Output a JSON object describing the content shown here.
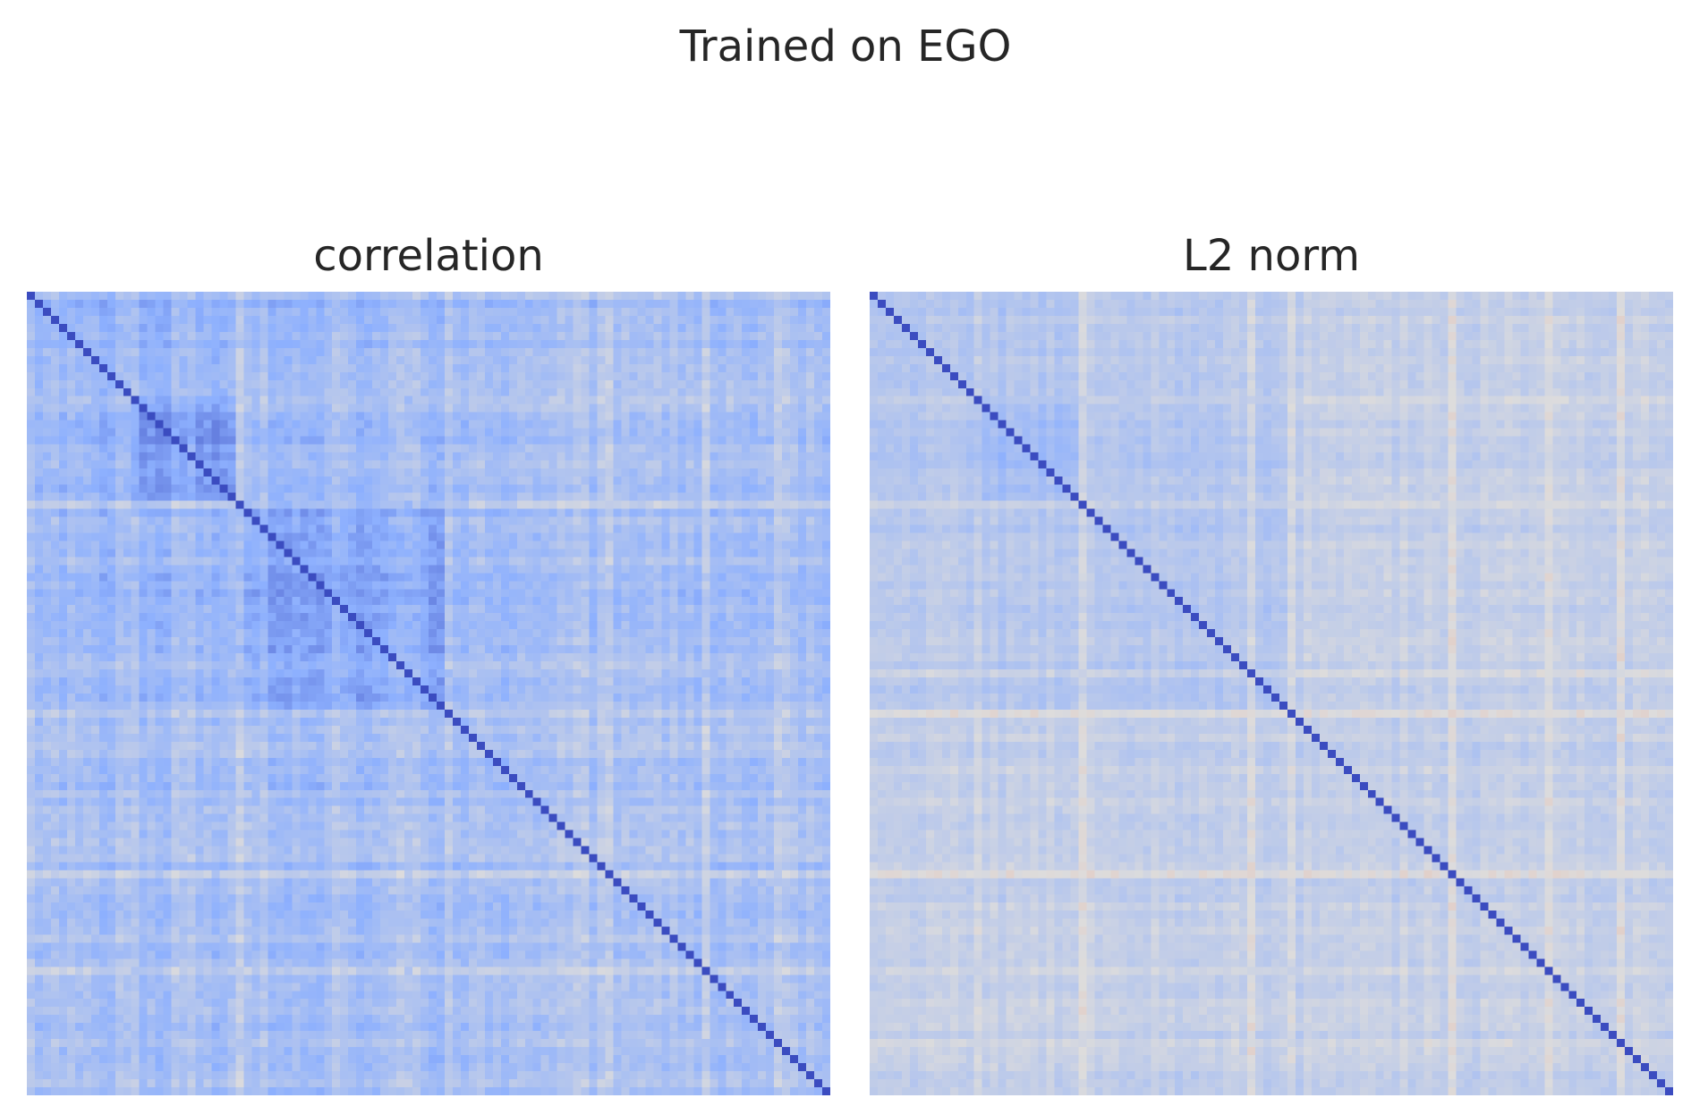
{
  "figure": {
    "title": "Trained on EGO"
  },
  "chart_data": [
    {
      "type": "heatmap",
      "title": "correlation",
      "xlabel": "",
      "ylabel": "",
      "size": 100,
      "colormap": "coolwarm",
      "color_range": [
        -1,
        1
      ],
      "diagonal_value": 1.0,
      "background_value": 0.3,
      "blocks": [
        {
          "rows": [
            13,
            26
          ],
          "cols": [
            13,
            26
          ],
          "value": 0.58
        },
        {
          "rows": [
            26,
            52
          ],
          "cols": [
            26,
            52
          ],
          "value": 0.5
        },
        {
          "rows": [
            0,
            26
          ],
          "cols": [
            0,
            26
          ],
          "value": 0.42
        },
        {
          "rows": [
            0,
            52
          ],
          "cols": [
            0,
            52
          ],
          "value": 0.38
        },
        {
          "rows": [
            52,
            100
          ],
          "cols": [
            0,
            52
          ],
          "value": 0.33
        },
        {
          "rows": [
            0,
            52
          ],
          "cols": [
            52,
            100
          ],
          "value": 0.33
        }
      ],
      "light_lines": [
        13,
        26,
        47,
        52,
        72,
        84,
        93
      ],
      "noise_amplitude": 0.16,
      "seed": 7,
      "grid": false,
      "legend": "none"
    },
    {
      "type": "heatmap",
      "title": "L2 norm",
      "xlabel": "",
      "ylabel": "",
      "size": 100,
      "colormap": "coolwarm",
      "color_range": [
        -1,
        1
      ],
      "diagonal_value": 1.0,
      "background_value": 0.16,
      "blocks": [
        {
          "rows": [
            13,
            26
          ],
          "cols": [
            13,
            26
          ],
          "value": 0.36
        },
        {
          "rows": [
            13,
            52
          ],
          "cols": [
            13,
            52
          ],
          "value": 0.25
        },
        {
          "rows": [
            0,
            26
          ],
          "cols": [
            0,
            26
          ],
          "value": 0.26
        },
        {
          "rows": [
            0,
            52
          ],
          "cols": [
            0,
            52
          ],
          "value": 0.22
        }
      ],
      "light_lines": [
        13,
        26,
        47,
        52,
        72,
        84,
        93
      ],
      "noise_amplitude": 0.1,
      "seed": 11,
      "grid": false,
      "legend": "none"
    }
  ],
  "colors": {
    "text": "#262626",
    "background": "#ffffff"
  }
}
